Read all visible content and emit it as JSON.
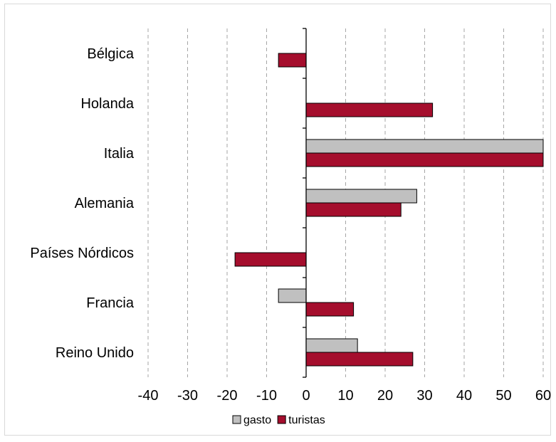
{
  "chart_data": {
    "type": "bar",
    "orientation": "horizontal",
    "categories": [
      "Bélgica",
      "Holanda",
      "Italia",
      "Alemania",
      "Países Nórdicos",
      "Francia",
      "Reino Unido"
    ],
    "series": [
      {
        "name": "gasto",
        "color": "#c0c0c0",
        "values": [
          0,
          0,
          62,
          28,
          0,
          -7,
          13
        ]
      },
      {
        "name": "turistas",
        "color": "#a50e2d",
        "values": [
          -7,
          32,
          62,
          24,
          -18,
          12,
          27
        ]
      }
    ],
    "xlim": [
      -40,
      60
    ],
    "xticks": [
      -40,
      -30,
      -20,
      -10,
      0,
      10,
      20,
      30,
      40,
      50,
      60
    ],
    "grid": "vertical dashed",
    "legend": "bottom"
  }
}
